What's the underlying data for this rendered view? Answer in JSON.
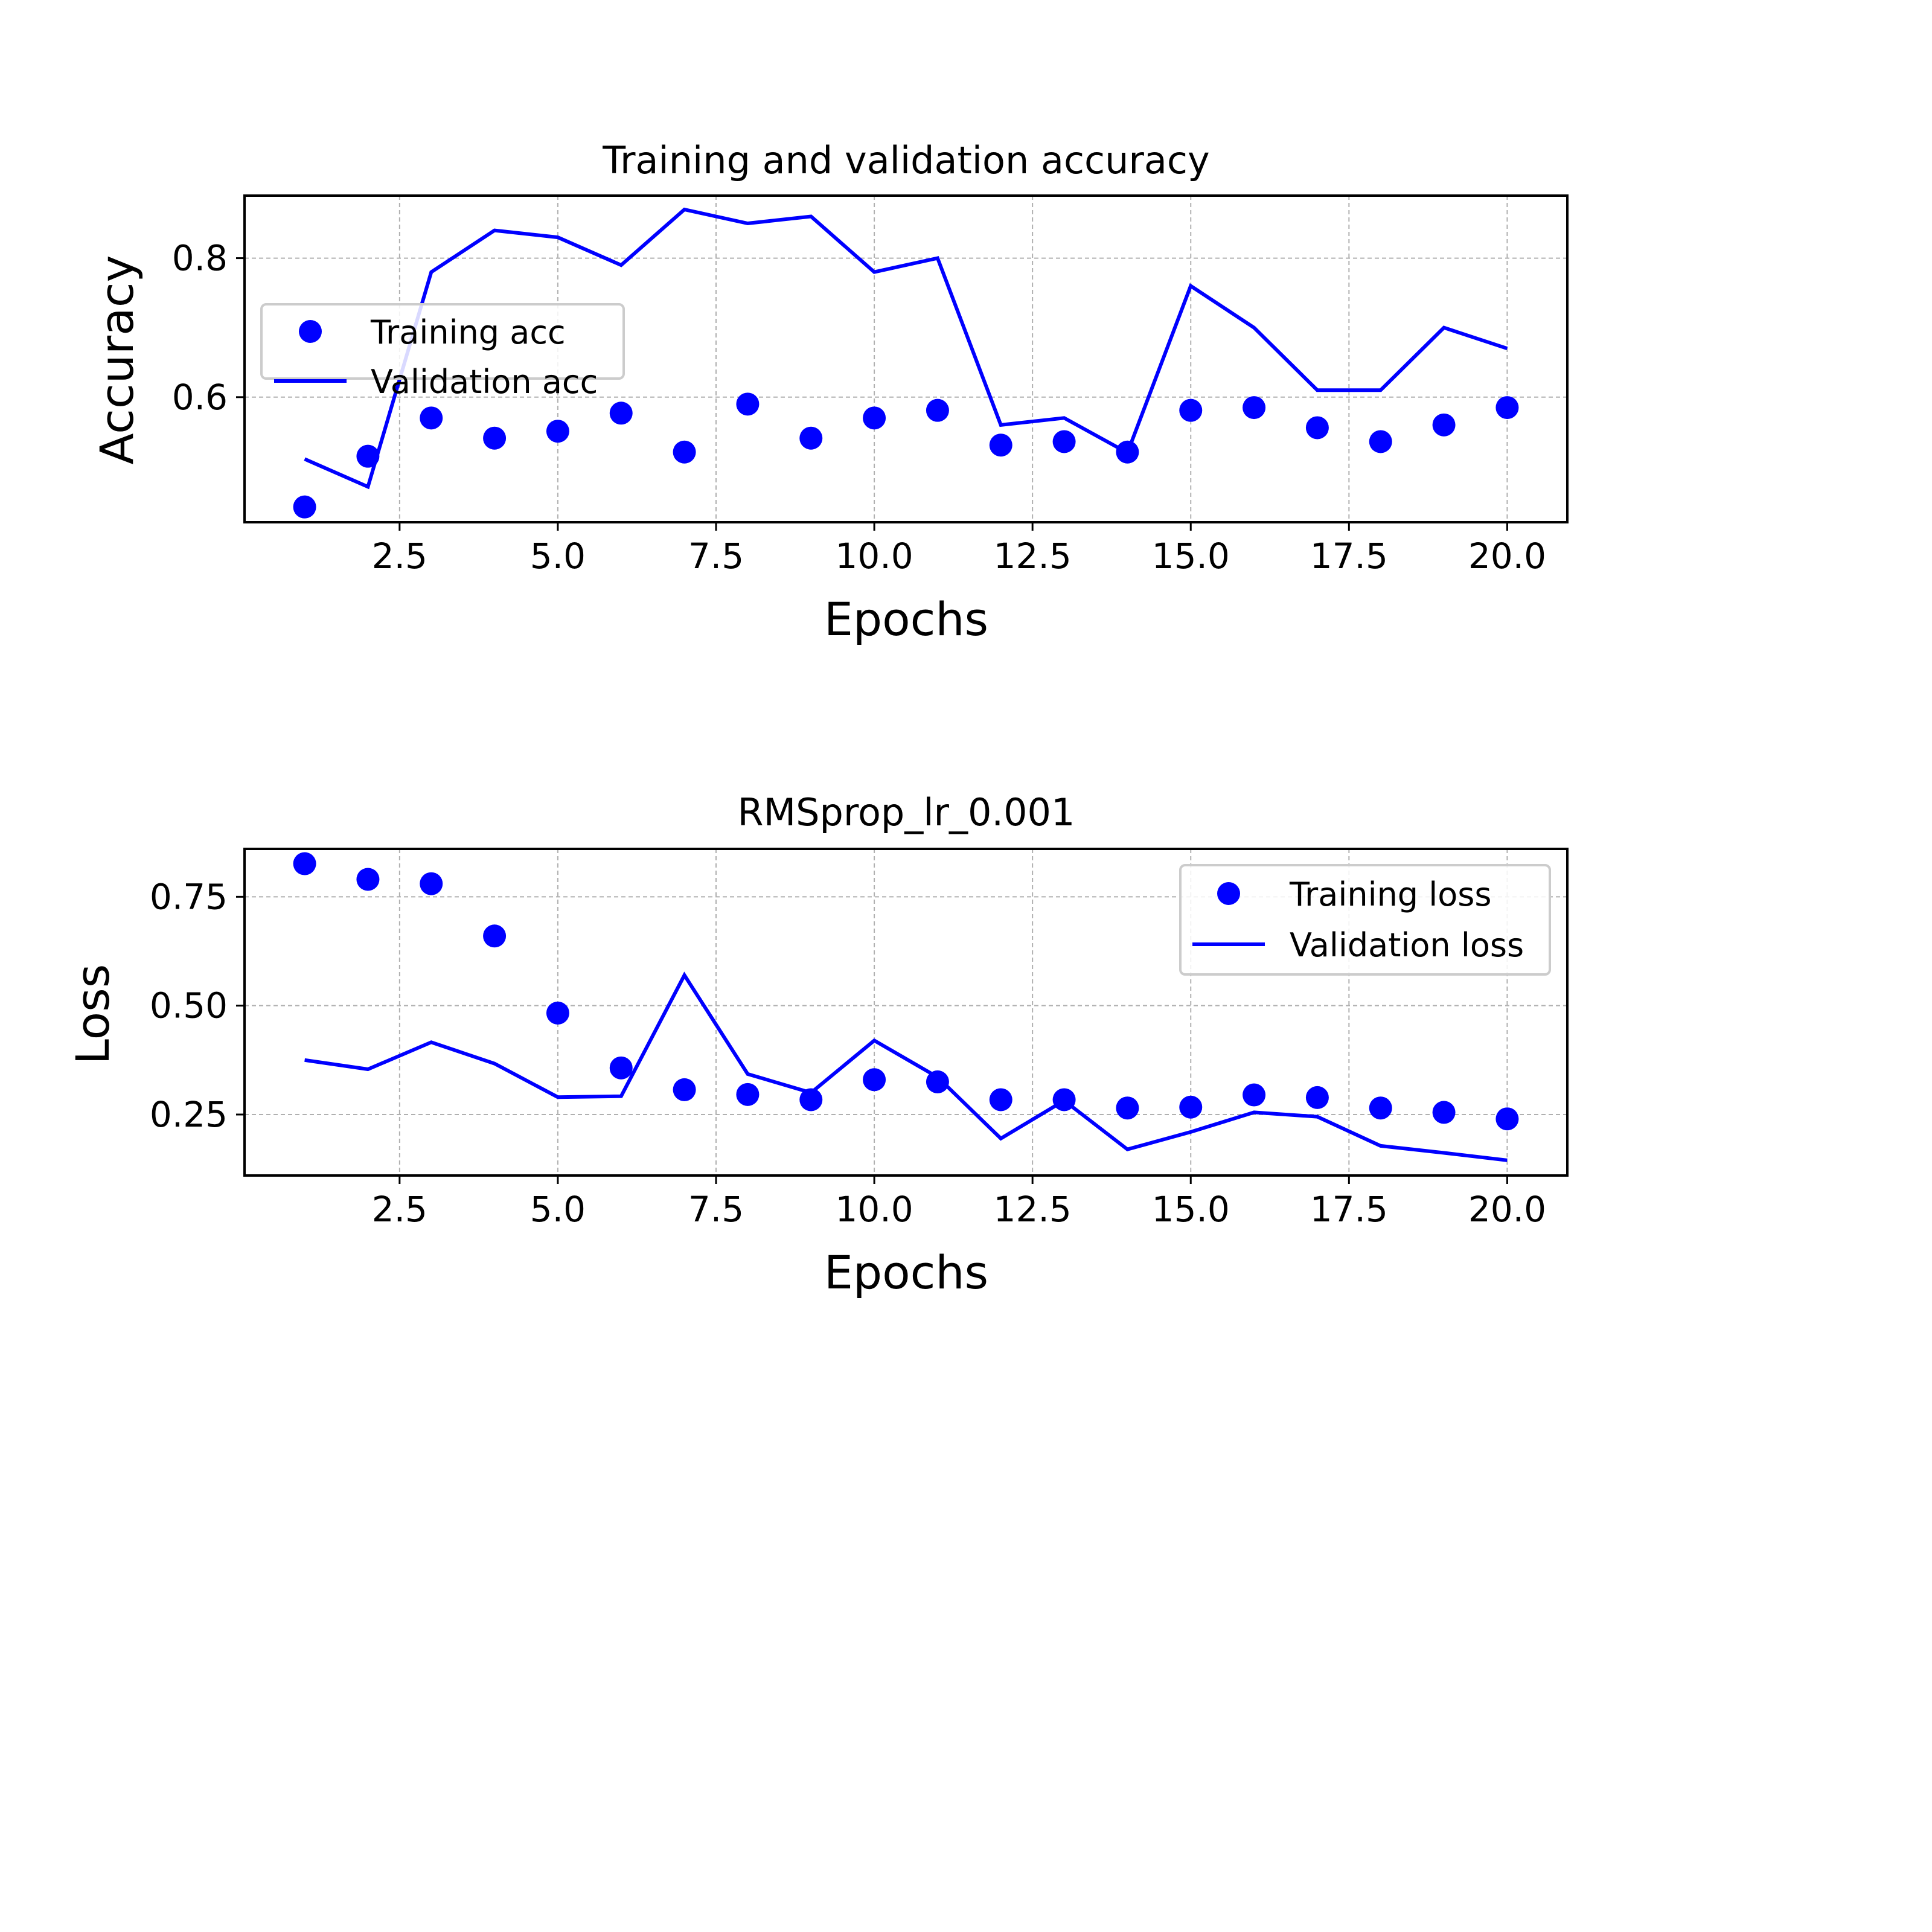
{
  "colors": {
    "series": "#0000ff",
    "grid": "#b0b0b0",
    "axes": "#000000"
  },
  "chart_data": [
    {
      "type": "line",
      "title": "Training and validation accuracy",
      "xlabel": "Epochs",
      "ylabel": "Accuracy",
      "xlim": [
        0.05,
        20.95
      ],
      "ylim": [
        0.42,
        0.89
      ],
      "xticks": [
        2.5,
        5.0,
        7.5,
        10.0,
        12.5,
        15.0,
        17.5,
        20.0
      ],
      "xtick_labels": [
        "2.5",
        "5.0",
        "7.5",
        "10.0",
        "12.5",
        "15.0",
        "17.5",
        "20.0"
      ],
      "yticks": [
        0.6,
        0.8
      ],
      "ytick_labels": [
        "0.6",
        "0.8"
      ],
      "grid": true,
      "legend_placement": "center-left",
      "x": [
        1,
        2,
        3,
        4,
        5,
        6,
        7,
        8,
        9,
        10,
        11,
        12,
        13,
        14,
        15,
        16,
        17,
        18,
        19,
        20
      ],
      "series": [
        {
          "name": "Training acc",
          "style": "markers",
          "values": [
            0.442,
            0.515,
            0.57,
            0.541,
            0.551,
            0.577,
            0.521,
            0.59,
            0.541,
            0.57,
            0.581,
            0.531,
            0.536,
            0.521,
            0.581,
            0.585,
            0.556,
            0.536,
            0.56,
            0.585
          ]
        },
        {
          "name": "Validation acc",
          "style": "line",
          "values": [
            0.511,
            0.471,
            0.78,
            0.84,
            0.83,
            0.79,
            0.87,
            0.85,
            0.86,
            0.78,
            0.8,
            0.56,
            0.57,
            0.52,
            0.76,
            0.7,
            0.61,
            0.61,
            0.7,
            0.67
          ]
        }
      ]
    },
    {
      "type": "line",
      "title": "RMSprop_lr_0.001",
      "xlabel": "Epochs",
      "ylabel": "Loss",
      "xlim": [
        0.05,
        20.95
      ],
      "ylim": [
        0.11,
        0.86
      ],
      "xticks": [
        2.5,
        5.0,
        7.5,
        10.0,
        12.5,
        15.0,
        17.5,
        20.0
      ],
      "xtick_labels": [
        "2.5",
        "5.0",
        "7.5",
        "10.0",
        "12.5",
        "15.0",
        "17.5",
        "20.0"
      ],
      "yticks": [
        0.25,
        0.5,
        0.75
      ],
      "ytick_labels": [
        "0.25",
        "0.50",
        "0.75"
      ],
      "grid": true,
      "legend_placement": "top-right",
      "x": [
        1,
        2,
        3,
        4,
        5,
        6,
        7,
        8,
        9,
        10,
        11,
        12,
        13,
        14,
        15,
        16,
        17,
        18,
        19,
        20
      ],
      "series": [
        {
          "name": "Training loss",
          "style": "markers",
          "values": [
            0.826,
            0.79,
            0.78,
            0.66,
            0.483,
            0.357,
            0.307,
            0.296,
            0.284,
            0.33,
            0.325,
            0.284,
            0.284,
            0.265,
            0.267,
            0.295,
            0.289,
            0.265,
            0.255,
            0.24
          ]
        },
        {
          "name": "Validation loss",
          "style": "line",
          "values": [
            0.375,
            0.354,
            0.416,
            0.367,
            0.29,
            0.292,
            0.57,
            0.343,
            0.3,
            0.42,
            0.336,
            0.195,
            0.282,
            0.17,
            0.21,
            0.255,
            0.245,
            0.178,
            0.162,
            0.145
          ]
        }
      ]
    }
  ]
}
